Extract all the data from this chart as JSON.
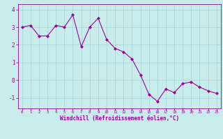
{
  "x": [
    0,
    1,
    2,
    3,
    4,
    5,
    6,
    7,
    8,
    9,
    10,
    11,
    12,
    13,
    14,
    15,
    16,
    17,
    18,
    19,
    20,
    21,
    22,
    23
  ],
  "y": [
    3.0,
    3.1,
    2.5,
    2.5,
    3.1,
    3.0,
    3.7,
    1.9,
    3.0,
    3.5,
    2.3,
    1.8,
    1.6,
    1.2,
    0.3,
    -0.8,
    -1.2,
    -0.5,
    -0.7,
    -0.2,
    -0.1,
    -0.4,
    -0.6,
    -0.75
  ],
  "line_color": "#990099",
  "marker_color": "#990099",
  "bg_color": "#c8ecec",
  "grid_color": "#aad8d8",
  "axis_label_color": "#990099",
  "tick_color": "#990099",
  "xlabel": "Windchill (Refroidissement éolien,°C)",
  "xlim": [
    -0.5,
    23.5
  ],
  "ylim": [
    -1.6,
    4.3
  ],
  "yticks": [
    -1,
    0,
    1,
    2,
    3,
    4
  ],
  "xticks": [
    0,
    1,
    2,
    3,
    4,
    5,
    6,
    7,
    8,
    9,
    10,
    11,
    12,
    13,
    14,
    15,
    16,
    17,
    18,
    19,
    20,
    21,
    22,
    23
  ],
  "xtick_fontsize": 4.0,
  "ytick_fontsize": 5.5,
  "xlabel_fontsize": 5.5
}
